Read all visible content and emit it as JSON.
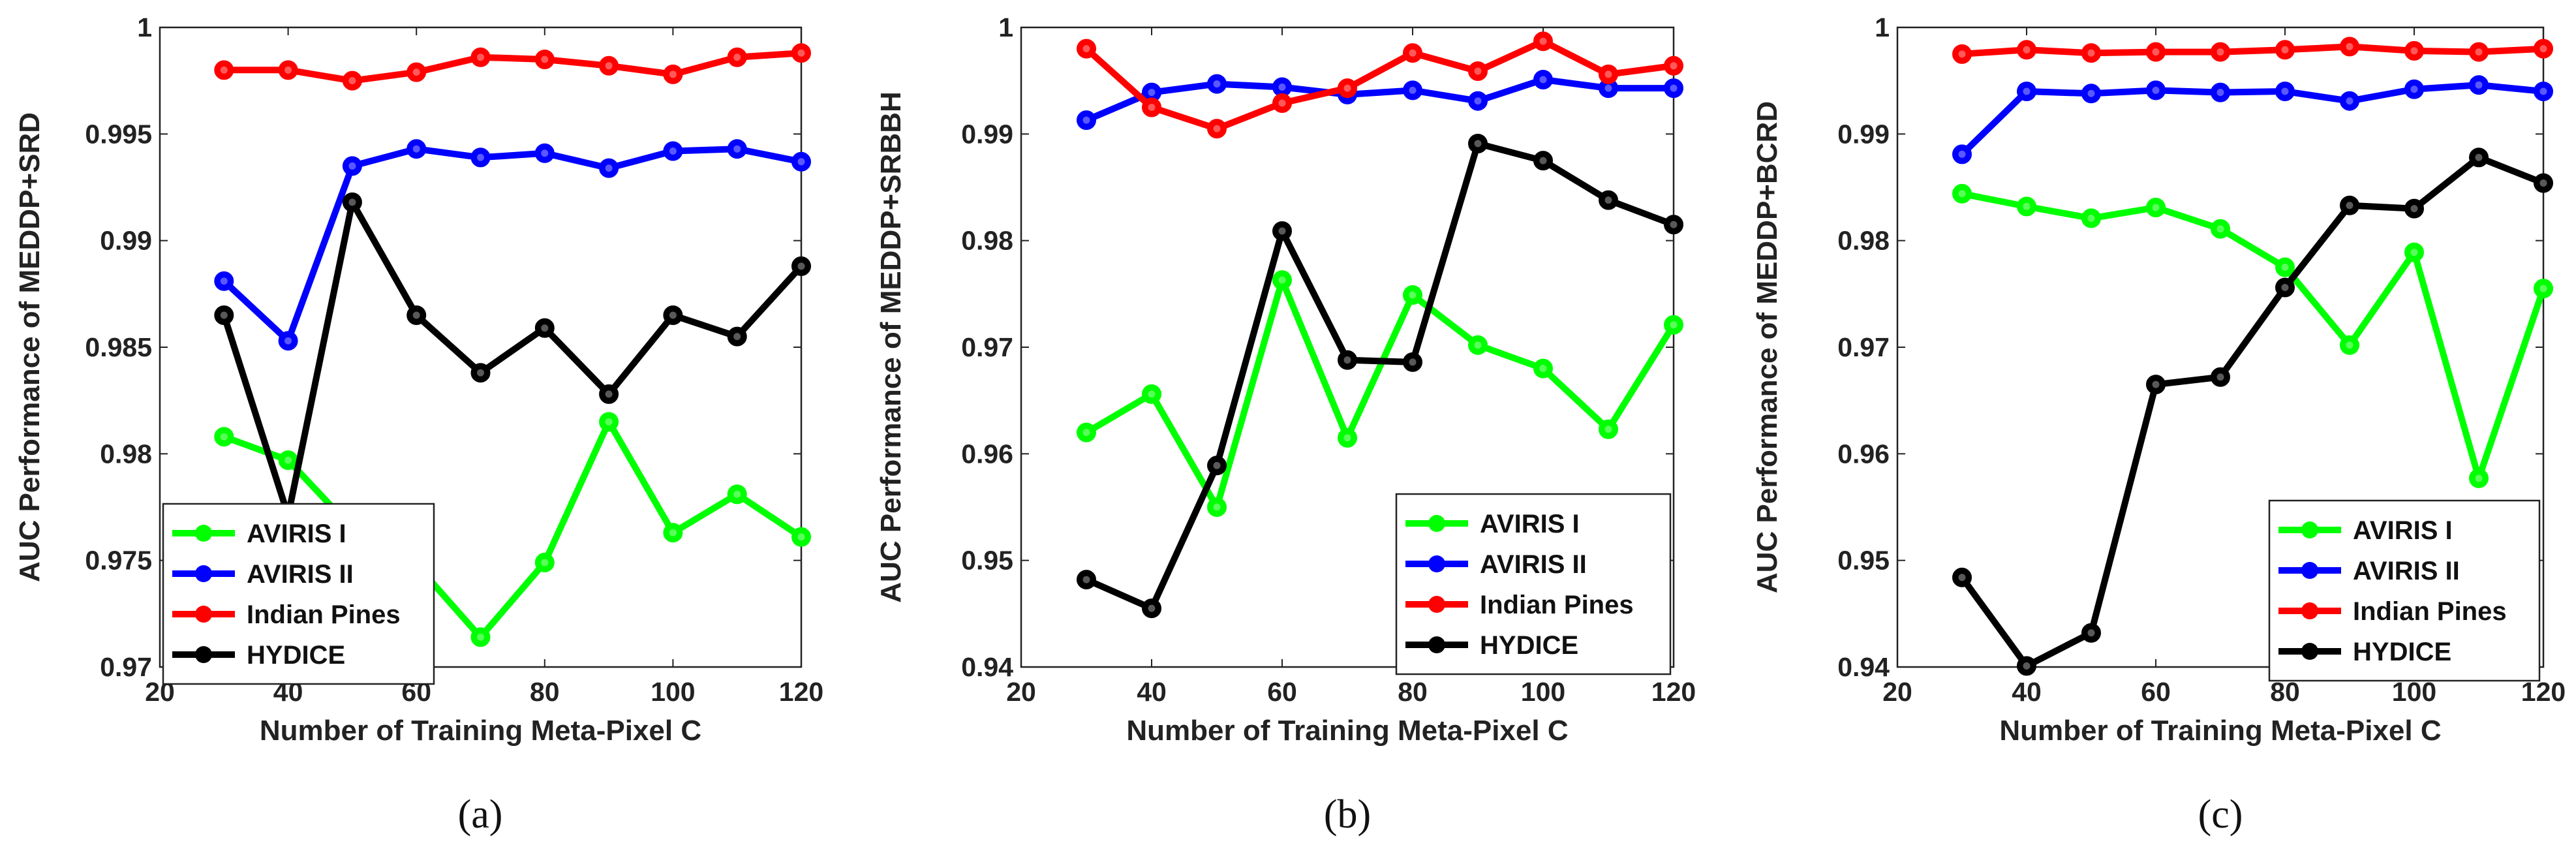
{
  "chart_data": [
    {
      "type": "line",
      "panel_label": "(a)",
      "xlabel": "Number of Training Meta-Pixel C",
      "ylabel": "AUC Performance of MEDDP+SRD",
      "xlim": [
        20,
        120
      ],
      "ylim": [
        0.97,
        1.0
      ],
      "xticks": [
        "20",
        "40",
        "60",
        "80",
        "100",
        "120"
      ],
      "yticks": [
        "0.97",
        "0.975",
        "0.98",
        "0.985",
        "0.99",
        "0.995",
        "1"
      ],
      "x": [
        30,
        40,
        50,
        60,
        70,
        80,
        90,
        100,
        110,
        120
      ],
      "legend_position": "bottom-left",
      "series": [
        {
          "name": "AVIRIS I",
          "color": "#00ff00",
          "values": [
            0.9808,
            0.9797,
            0.9765,
            0.9748,
            0.9714,
            0.9749,
            0.9815,
            0.9763,
            0.9781,
            0.9761
          ]
        },
        {
          "name": "AVIRIS II",
          "color": "#0000ff",
          "values": [
            0.9881,
            0.9853,
            0.9935,
            0.9943,
            0.9939,
            0.9941,
            0.9934,
            0.9942,
            0.9943,
            0.9937
          ]
        },
        {
          "name": "Indian Pines",
          "color": "#ff0000",
          "values": [
            0.998,
            0.998,
            0.9975,
            0.9979,
            0.9986,
            0.9985,
            0.9982,
            0.9978,
            0.9986,
            0.9988
          ]
        },
        {
          "name": "HYDICE",
          "color": "#000000",
          "values": [
            0.9865,
            0.9771,
            0.9918,
            0.9865,
            0.9838,
            0.9859,
            0.9828,
            0.9865,
            0.9855,
            0.9888
          ]
        }
      ]
    },
    {
      "type": "line",
      "panel_label": "(b)",
      "xlabel": "Number of Training Meta-Pixel C",
      "ylabel": "AUC Performance of MEDDP+SRBBH",
      "xlim": [
        20,
        120
      ],
      "ylim": [
        0.94,
        1.0
      ],
      "xticks": [
        "20",
        "40",
        "60",
        "80",
        "100",
        "120"
      ],
      "yticks": [
        "0.94",
        "0.95",
        "0.96",
        "0.97",
        "0.98",
        "0.99",
        "1"
      ],
      "x": [
        30,
        40,
        50,
        60,
        70,
        80,
        90,
        100,
        110,
        120
      ],
      "legend_position": "bottom-right",
      "series": [
        {
          "name": "AVIRIS I",
          "color": "#00ff00",
          "values": [
            0.962,
            0.9656,
            0.955,
            0.9763,
            0.9615,
            0.9749,
            0.9702,
            0.968,
            0.9623,
            0.9721
          ]
        },
        {
          "name": "AVIRIS II",
          "color": "#0000ff",
          "values": [
            0.9913,
            0.9939,
            0.9947,
            0.9944,
            0.9937,
            0.9941,
            0.9931,
            0.9951,
            0.9943,
            0.9943
          ]
        },
        {
          "name": "Indian Pines",
          "color": "#ff0000",
          "values": [
            0.998,
            0.9925,
            0.9905,
            0.9929,
            0.9943,
            0.9976,
            0.9959,
            0.9987,
            0.9956,
            0.9964
          ]
        },
        {
          "name": "HYDICE",
          "color": "#000000",
          "values": [
            0.9482,
            0.9455,
            0.9589,
            0.9809,
            0.9688,
            0.9686,
            0.9891,
            0.9875,
            0.9838,
            0.9815
          ]
        }
      ]
    },
    {
      "type": "line",
      "panel_label": "(c)",
      "xlabel": "Number of Training Meta-Pixel C",
      "ylabel": "AUC Performance of MEDDP+BCRD",
      "xlim": [
        20,
        120
      ],
      "ylim": [
        0.94,
        1.0
      ],
      "xticks": [
        "20",
        "40",
        "60",
        "80",
        "100",
        "120"
      ],
      "yticks": [
        "0.94",
        "0.95",
        "0.96",
        "0.97",
        "0.98",
        "0.99",
        "1"
      ],
      "x": [
        30,
        40,
        50,
        60,
        70,
        80,
        90,
        100,
        110,
        120
      ],
      "legend_position": "bottom-right",
      "series": [
        {
          "name": "AVIRIS I",
          "color": "#00ff00",
          "values": [
            0.9844,
            0.9832,
            0.9821,
            0.9831,
            0.9811,
            0.9775,
            0.9702,
            0.9789,
            0.9577,
            0.9755
          ]
        },
        {
          "name": "AVIRIS II",
          "color": "#0000ff",
          "values": [
            0.9881,
            0.994,
            0.9938,
            0.9941,
            0.9939,
            0.994,
            0.9931,
            0.9942,
            0.9946,
            0.994
          ]
        },
        {
          "name": "Indian Pines",
          "color": "#ff0000",
          "values": [
            0.9975,
            0.9979,
            0.9976,
            0.9977,
            0.9977,
            0.9979,
            0.9982,
            0.9978,
            0.9977,
            0.998
          ]
        },
        {
          "name": "HYDICE",
          "color": "#000000",
          "values": [
            0.9484,
            0.9401,
            0.9432,
            0.9665,
            0.9672,
            0.9756,
            0.9833,
            0.983,
            0.9878,
            0.9854
          ]
        }
      ]
    }
  ]
}
